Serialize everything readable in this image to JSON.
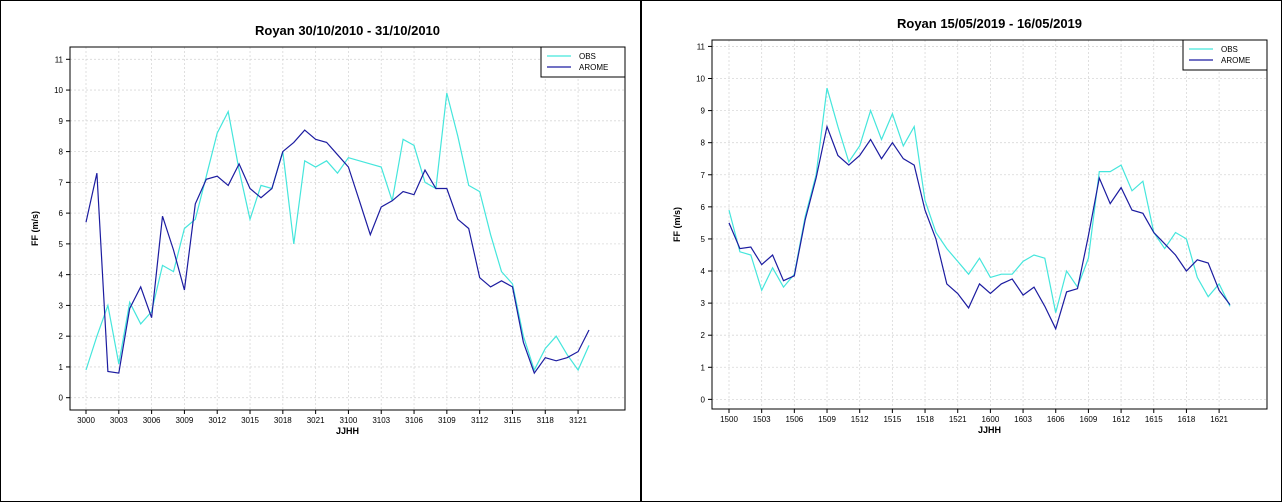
{
  "chart_data": [
    {
      "type": "line",
      "title": "Royan  30/10/2010 - 31/10/2010",
      "xlabel": "JJHH",
      "ylabel": "FF (m/s)",
      "categories": [
        "3000",
        null,
        null,
        "3003",
        null,
        null,
        "3006",
        null,
        null,
        "3009",
        null,
        null,
        "3012",
        null,
        null,
        "3015",
        null,
        null,
        "3018",
        null,
        null,
        "3021",
        null,
        null,
        "3100",
        null,
        null,
        "3103",
        null,
        null,
        "3106",
        null,
        null,
        "3109",
        null,
        null,
        "3112",
        null,
        null,
        "3115",
        null,
        null,
        "3118",
        null,
        null,
        "3121",
        null
      ],
      "series": [
        {
          "name": "OBS",
          "color": "#45e6dc",
          "values": [
            0.9,
            2.0,
            3.0,
            1.1,
            3.1,
            2.4,
            2.8,
            4.3,
            4.1,
            5.5,
            5.8,
            7.2,
            8.6,
            9.3,
            7.4,
            5.8,
            6.9,
            6.8,
            8.0,
            5.0,
            7.7,
            7.5,
            7.7,
            7.3,
            7.8,
            7.7,
            7.6,
            7.5,
            6.4,
            8.4,
            8.2,
            7.0,
            6.8,
            9.9,
            8.5,
            6.9,
            6.7,
            5.3,
            4.1,
            3.7,
            2.0,
            0.9,
            1.6,
            2.0,
            1.4,
            0.9,
            1.7
          ]
        },
        {
          "name": "AROME",
          "color": "#1c1ca0",
          "values": [
            5.7,
            7.3,
            0.85,
            0.8,
            2.9,
            3.6,
            2.6,
            5.9,
            4.8,
            3.5,
            6.3,
            7.1,
            7.2,
            6.9,
            7.6,
            6.8,
            6.5,
            6.8,
            8.0,
            8.3,
            8.7,
            8.4,
            8.3,
            7.9,
            7.5,
            6.4,
            5.3,
            6.2,
            6.4,
            6.7,
            6.6,
            7.4,
            6.8,
            6.8,
            5.8,
            5.5,
            3.9,
            3.6,
            3.8,
            3.6,
            1.8,
            0.8,
            1.3,
            1.2,
            1.3,
            1.5,
            2.2
          ]
        }
      ],
      "ylim": [
        -0.4,
        11.4
      ],
      "yticks": [
        0,
        1,
        2,
        3,
        4,
        5,
        6,
        7,
        8,
        9,
        10,
        11
      ],
      "grid": true,
      "legend": "top-right"
    },
    {
      "type": "line",
      "title": "Royan  15/05/2019 - 16/05/2019",
      "xlabel": "JJHH",
      "ylabel": "FF (m/s)",
      "categories": [
        "1500",
        null,
        null,
        "1503",
        null,
        null,
        "1506",
        null,
        null,
        "1509",
        null,
        null,
        "1512",
        null,
        null,
        "1515",
        null,
        null,
        "1518",
        null,
        null,
        "1521",
        null,
        null,
        "1600",
        null,
        null,
        "1603",
        null,
        null,
        "1606",
        null,
        null,
        "1609",
        null,
        null,
        "1612",
        null,
        null,
        "1615",
        null,
        null,
        "1618",
        null,
        null,
        "1621",
        null
      ],
      "series": [
        {
          "name": "OBS",
          "color": "#45e6dc",
          "values": [
            5.9,
            4.6,
            4.5,
            3.4,
            4.1,
            3.5,
            3.9,
            5.7,
            7.0,
            9.7,
            8.5,
            7.4,
            7.9,
            9.0,
            8.1,
            8.9,
            7.9,
            8.5,
            6.2,
            5.2,
            4.7,
            4.3,
            3.9,
            4.4,
            3.8,
            3.9,
            3.9,
            4.3,
            4.5,
            4.4,
            2.7,
            4.0,
            3.5,
            4.4,
            7.1,
            7.1,
            7.3,
            6.5,
            6.8,
            5.2,
            4.7,
            5.2,
            5.0,
            3.8,
            3.2,
            3.6,
            2.9
          ]
        },
        {
          "name": "AROME",
          "color": "#1c1ca0",
          "values": [
            5.5,
            4.7,
            4.75,
            4.2,
            4.5,
            3.7,
            3.85,
            5.6,
            6.9,
            8.5,
            7.6,
            7.3,
            7.6,
            8.1,
            7.5,
            8.0,
            7.5,
            7.3,
            5.9,
            5.0,
            3.6,
            3.3,
            2.85,
            3.6,
            3.3,
            3.6,
            3.75,
            3.25,
            3.5,
            2.9,
            2.2,
            3.35,
            3.45,
            5.1,
            6.9,
            6.1,
            6.6,
            5.9,
            5.8,
            5.2,
            4.85,
            4.5,
            4.0,
            4.35,
            4.25,
            3.4,
            2.95
          ]
        }
      ],
      "ylim": [
        -0.3,
        11.2
      ],
      "yticks": [
        0,
        1,
        2,
        3,
        4,
        5,
        6,
        7,
        8,
        9,
        10,
        11
      ],
      "grid": true,
      "legend": "top-right"
    }
  ]
}
